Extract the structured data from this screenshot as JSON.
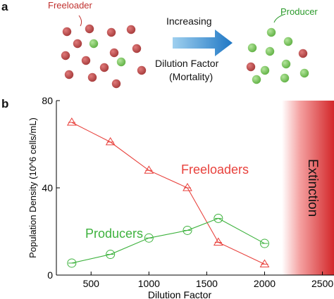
{
  "panel_a": {
    "label": "a",
    "freeloader_label": "Freeloader",
    "producer_label": "Producer",
    "arrow_caption_top": "Increasing",
    "arrow_caption_bottom_1": "Dilution Factor",
    "arrow_caption_bottom_2": "(Mortality)",
    "colors": {
      "freeloader": "#b84a4a",
      "producer": "#7cc95a",
      "arrow": "#1f77c4"
    }
  },
  "panel_b": {
    "label": "b"
  },
  "chart_data": {
    "type": "line",
    "xlabel": "Dilution Factor",
    "ylabel": "Population Density (10^6 cells/mL)",
    "xlim": [
      200,
      2600
    ],
    "ylim": [
      0,
      80
    ],
    "xticks": [
      500,
      1000,
      1500,
      2000,
      2500
    ],
    "yticks": [
      0,
      40,
      80
    ],
    "extinction_from": 2150,
    "extinction_label": "Extinction",
    "series": [
      {
        "name": "Freeloaders",
        "marker": "triangle",
        "color": "#e8413c",
        "x": [
          333,
          667,
          1000,
          1333,
          1600,
          2000
        ],
        "y": [
          70,
          61,
          48,
          40,
          15,
          5
        ]
      },
      {
        "name": "Producers",
        "marker": "circle",
        "color": "#3db23d",
        "x": [
          333,
          667,
          1000,
          1333,
          1600,
          2000
        ],
        "y": [
          5.5,
          9.5,
          17,
          20.5,
          26,
          14.5
        ]
      }
    ]
  }
}
